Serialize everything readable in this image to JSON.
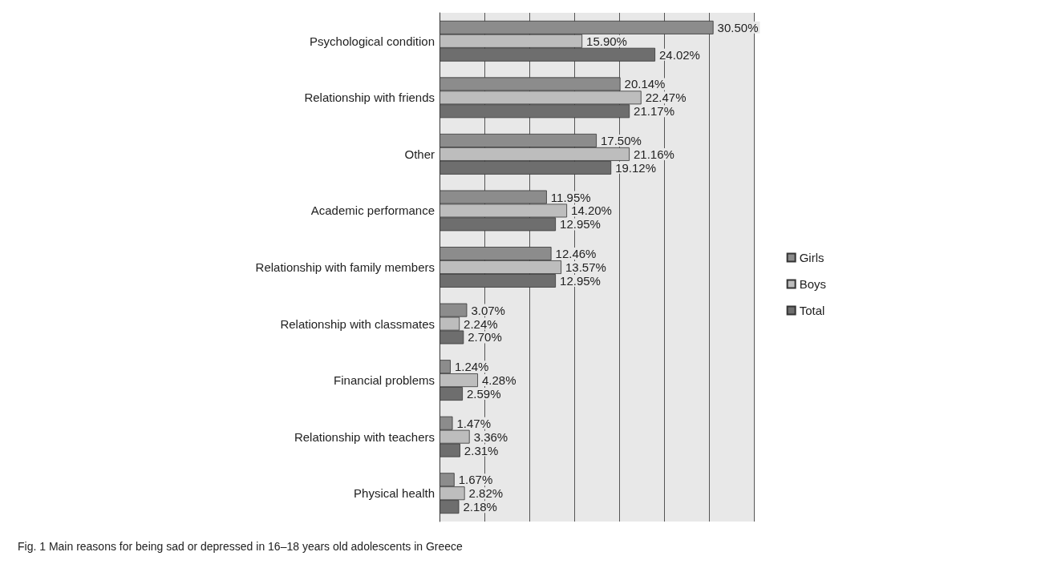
{
  "chart_data": {
    "type": "bar",
    "orientation": "horizontal",
    "categories": [
      "Psychological condition",
      "Relationship with friends",
      "Other",
      "Academic performance",
      "Relationship with family members",
      "Relationship with classmates",
      "Financial problems",
      "Relationship with teachers",
      "Physical health"
    ],
    "series": [
      {
        "name": "Girls",
        "color": "#8c8c8c",
        "values": [
          30.5,
          20.14,
          17.5,
          11.95,
          12.46,
          3.07,
          1.24,
          1.47,
          1.67
        ],
        "value_labels": [
          "30.50%",
          "20.14%",
          "17.50%",
          "11.95%",
          "12.46%",
          "3.07%",
          "1.24%",
          "1.47%",
          "1.67%"
        ]
      },
      {
        "name": "Boys",
        "color": "#bdbdbd",
        "values": [
          15.9,
          22.47,
          21.16,
          14.2,
          13.57,
          2.24,
          4.28,
          3.36,
          2.82
        ],
        "value_labels": [
          "15.90%",
          "22.47%",
          "21.16%",
          "14.20%",
          "13.57%",
          "2.24%",
          "4.28%",
          "3.36%",
          "2.82%"
        ]
      },
      {
        "name": "Total",
        "color": "#6e6e6e",
        "values": [
          24.02,
          21.17,
          19.12,
          12.95,
          12.95,
          2.7,
          2.59,
          2.31,
          2.18
        ],
        "value_labels": [
          "24.02%",
          "21.17%",
          "19.12%",
          "12.95%",
          "12.95%",
          "2.70%",
          "2.59%",
          "2.31%",
          "2.18%"
        ]
      }
    ],
    "xlim": [
      0,
      35
    ],
    "xticks": [
      {
        "value": 0,
        "label": null
      },
      {
        "value": 5,
        "label": null
      },
      {
        "value": 10,
        "label": null
      },
      {
        "value": 15,
        "label": null
      },
      {
        "value": 20,
        "label": null
      },
      {
        "value": 25,
        "label": null
      },
      {
        "value": 30,
        "label": null
      },
      {
        "value": 35,
        "label": null
      }
    ],
    "tick_labels": "y",
    "grid": "x",
    "legend": "right",
    "annotations": [
      "Fig. 1 Main reasons for being sad or depressed in 16–18 years old adolescents in Greece"
    ]
  }
}
